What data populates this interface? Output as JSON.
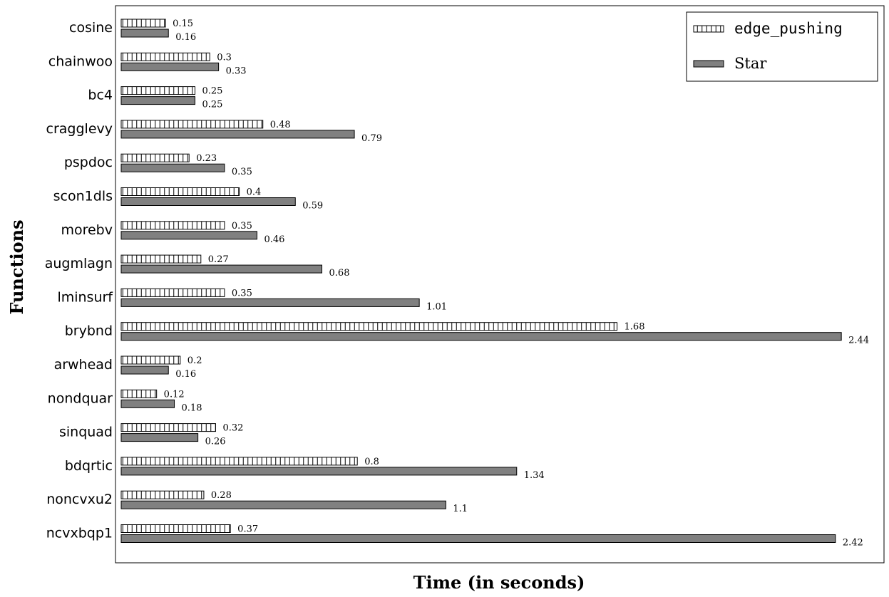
{
  "chart_data": {
    "type": "bar",
    "orientation": "horizontal",
    "title": "",
    "xlabel": "Time (in seconds)",
    "ylabel": "Functions",
    "xlim": [
      0,
      2.52
    ],
    "grid": false,
    "legend_position": "top-right",
    "categories": [
      "cosine",
      "chainwoo",
      "bc4",
      "cragglevy",
      "pspdoc",
      "scon1dls",
      "morebv",
      "augmlagn",
      "lminsurf",
      "brybnd",
      "arwhead",
      "nondquar",
      "sinquad",
      "bdqrtic",
      "noncvxu2",
      "ncvxbqp1"
    ],
    "series": [
      {
        "name": "edge_pushing",
        "style": "vertical-hatch",
        "color": "#ffffff",
        "values": [
          0.15,
          0.3,
          0.25,
          0.48,
          0.23,
          0.4,
          0.35,
          0.27,
          0.35,
          1.68,
          0.2,
          0.12,
          0.32,
          0.8,
          0.28,
          0.37
        ],
        "labels": [
          "0.15",
          "0.3",
          "0.25",
          "0.48",
          "0.23",
          "0.4",
          "0.35",
          "0.27",
          "0.35",
          "1.68",
          "0.2",
          "0.12",
          "0.32",
          "0.8",
          "0.28",
          "0.37"
        ]
      },
      {
        "name": "Star",
        "style": "solid",
        "color": "#808080",
        "values": [
          0.16,
          0.33,
          0.25,
          0.79,
          0.35,
          0.59,
          0.46,
          0.68,
          1.01,
          2.44,
          0.16,
          0.18,
          0.26,
          1.34,
          1.1,
          2.42
        ],
        "labels": [
          "0.16",
          "0.33",
          "0.25",
          "0.79",
          "0.35",
          "0.59",
          "0.46",
          "0.68",
          "1.01",
          "2.44",
          "0.16",
          "0.18",
          "0.26",
          "1.34",
          "1.1",
          "2.42"
        ]
      }
    ]
  }
}
